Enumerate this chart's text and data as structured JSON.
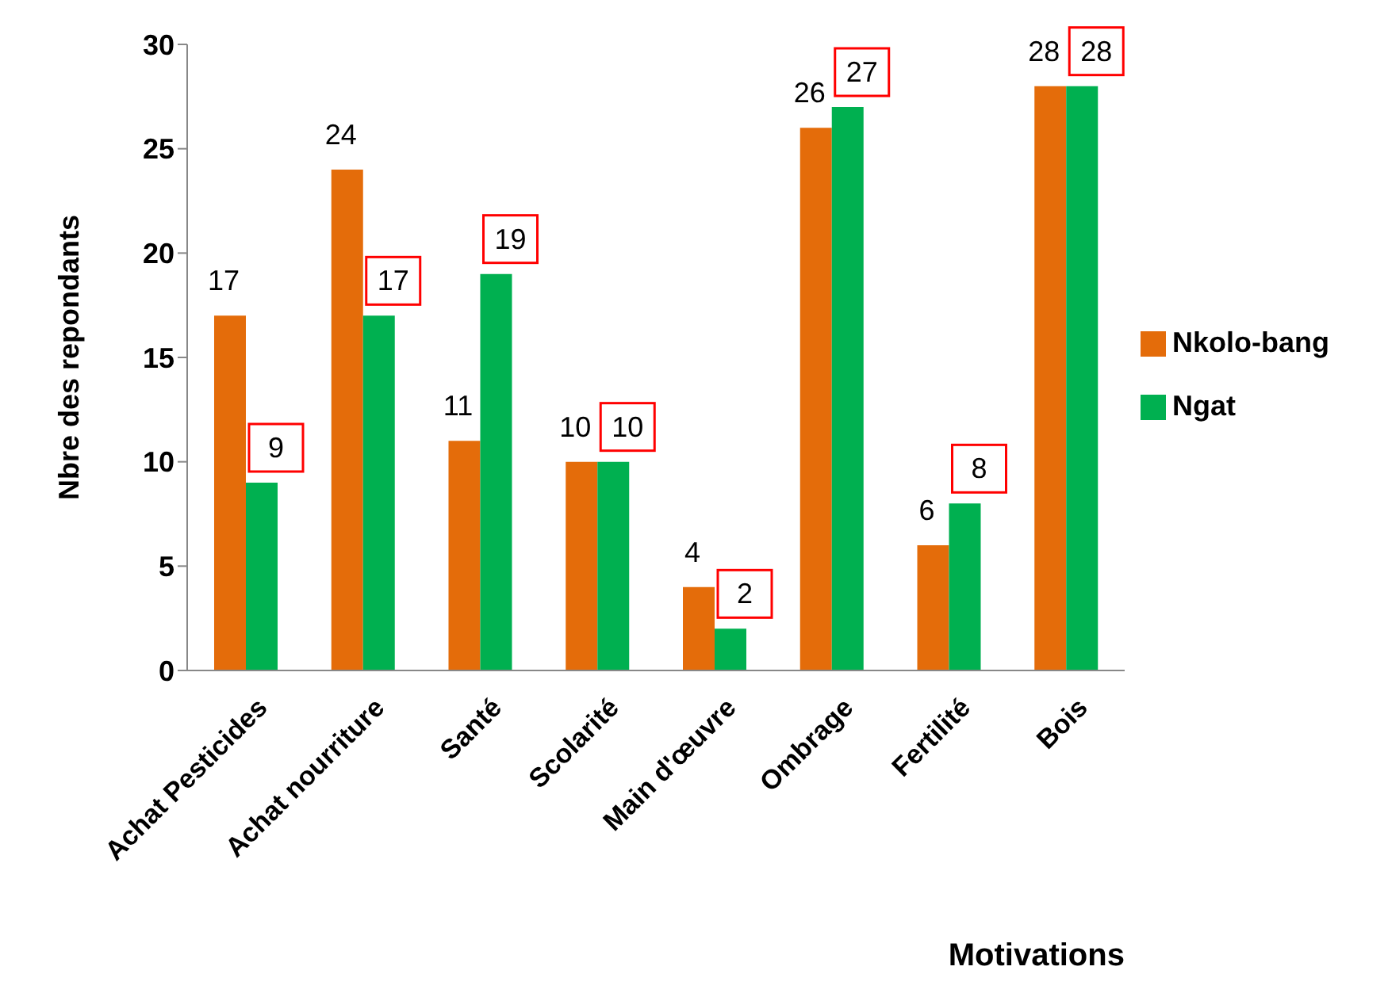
{
  "chart_data": {
    "type": "bar",
    "xlabel": "Motivations",
    "ylabel": "Nbre des repondants",
    "categories": [
      "Achat  Pesticides",
      "Achat nourriture",
      "Santé",
      "Scolarité",
      "Main d'œuvre",
      "Ombrage",
      "Fertilité",
      "Bois"
    ],
    "series": [
      {
        "name": "Nkolo-bang",
        "color": "#e46c0a",
        "values": [
          17,
          24,
          11,
          10,
          4,
          26,
          6,
          28
        ]
      },
      {
        "name": "Ngat",
        "color": "#00b050",
        "values": [
          9,
          17,
          19,
          10,
          2,
          27,
          8,
          28
        ]
      }
    ],
    "ylim": [
      0,
      30
    ],
    "yticks": [
      0,
      5,
      10,
      15,
      20,
      25,
      30
    ],
    "data_labels": true,
    "legend": "right",
    "grid": false
  }
}
